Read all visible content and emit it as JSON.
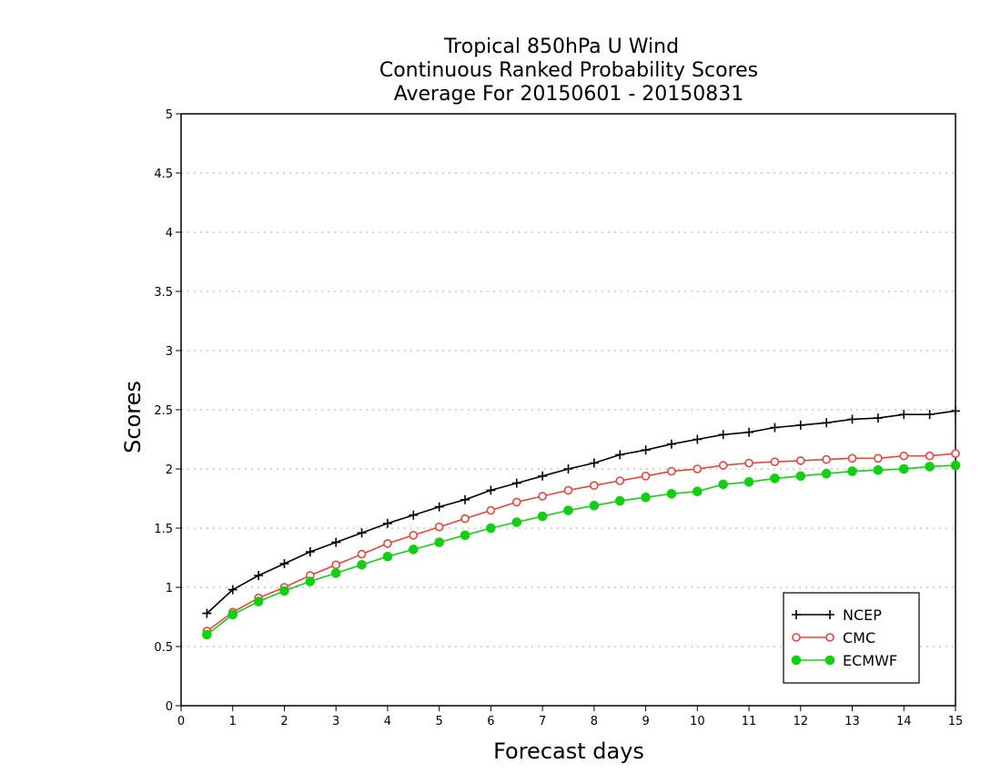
{
  "chart_data": {
    "type": "line",
    "title_lines": [
      "Tropical 850hPa U Wind",
      "Continuous Ranked Probability Scores",
      "Average For 20150601 - 20150831"
    ],
    "xlabel": "Forecast days",
    "ylabel": "Scores",
    "xlim": [
      0,
      15
    ],
    "ylim": [
      0,
      5
    ],
    "xticks": [
      "0",
      "1",
      "2",
      "3",
      "4",
      "5",
      "6",
      "7",
      "8",
      "9",
      "10",
      "11",
      "12",
      "13",
      "14",
      "15"
    ],
    "yticks": [
      "0",
      "0.5",
      "1",
      "1.5",
      "2",
      "2.5",
      "3",
      "3.5",
      "4",
      "4.5",
      "5"
    ],
    "grid": true,
    "legend_position": "bottom-right",
    "x": [
      0.5,
      1,
      1.5,
      2,
      2.5,
      3,
      3.5,
      4,
      4.5,
      5,
      5.5,
      6,
      6.5,
      7,
      7.5,
      8,
      8.5,
      9,
      9.5,
      10,
      10.5,
      11,
      11.5,
      12,
      12.5,
      13,
      13.5,
      14,
      14.5,
      15
    ],
    "series": [
      {
        "name": "NCEP",
        "color": "#000000",
        "marker": "plus",
        "values": [
          0.78,
          0.98,
          1.1,
          1.2,
          1.3,
          1.38,
          1.46,
          1.54,
          1.61,
          1.68,
          1.74,
          1.82,
          1.88,
          1.94,
          2.0,
          2.05,
          2.12,
          2.16,
          2.21,
          2.25,
          2.29,
          2.31,
          2.35,
          2.37,
          2.39,
          2.42,
          2.43,
          2.46,
          2.46,
          2.49
        ]
      },
      {
        "name": "CMC",
        "color": "#e8443a",
        "marker": "open-circle",
        "values": [
          0.63,
          0.79,
          0.91,
          1.0,
          1.1,
          1.19,
          1.28,
          1.37,
          1.44,
          1.51,
          1.58,
          1.65,
          1.72,
          1.77,
          1.82,
          1.86,
          1.9,
          1.94,
          1.98,
          2.0,
          2.03,
          2.05,
          2.06,
          2.07,
          2.08,
          2.09,
          2.09,
          2.11,
          2.11,
          2.13
        ]
      },
      {
        "name": "ECMWF",
        "color": "#11d011",
        "marker": "filled-circle",
        "values": [
          0.6,
          0.77,
          0.88,
          0.97,
          1.05,
          1.12,
          1.19,
          1.26,
          1.32,
          1.38,
          1.44,
          1.5,
          1.55,
          1.6,
          1.65,
          1.69,
          1.73,
          1.76,
          1.79,
          1.81,
          1.87,
          1.89,
          1.92,
          1.94,
          1.96,
          1.98,
          1.99,
          2.0,
          2.02,
          2.03
        ]
      }
    ]
  }
}
